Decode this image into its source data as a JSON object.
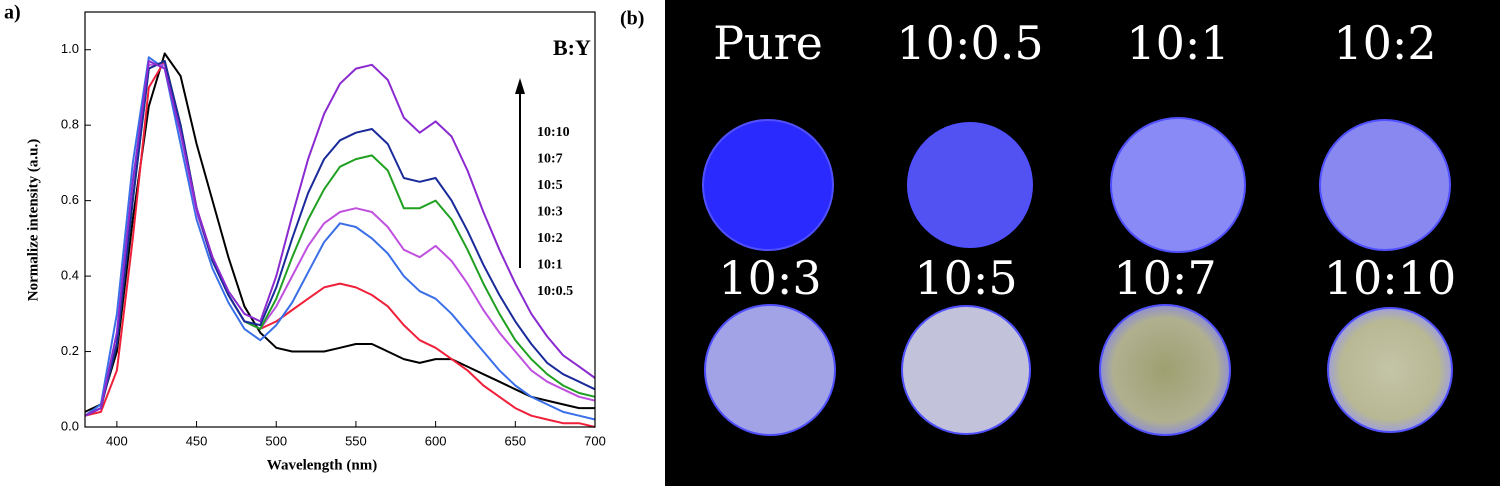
{
  "chart_data": {
    "type": "line",
    "panel_label": "a)",
    "x_label": "Wavelength (nm)",
    "y_label": "Normalize intensity (a.u.)",
    "legend_title": "B:Y",
    "xlim": [
      380,
      700
    ],
    "xticks": [
      400,
      450,
      500,
      550,
      600,
      650,
      700
    ],
    "ylim": [
      0,
      1.1
    ],
    "yticks": [
      {
        "value": 0,
        "label": "0.0"
      },
      0.2,
      0.4,
      0.6,
      0.8,
      {
        "value": 1,
        "label": "1.0"
      }
    ],
    "grid": false,
    "x": [
      380,
      390,
      400,
      410,
      420,
      430,
      440,
      450,
      460,
      470,
      480,
      490,
      500,
      510,
      520,
      530,
      540,
      550,
      560,
      570,
      580,
      590,
      600,
      610,
      620,
      630,
      640,
      650,
      660,
      670,
      680,
      690,
      700
    ],
    "series": [
      {
        "name": "10:0.5",
        "color": "#000000",
        "values": [
          0.04,
          0.06,
          0.2,
          0.55,
          0.85,
          0.99,
          0.93,
          0.75,
          0.6,
          0.45,
          0.32,
          0.25,
          0.21,
          0.2,
          0.2,
          0.2,
          0.21,
          0.22,
          0.22,
          0.2,
          0.18,
          0.17,
          0.18,
          0.18,
          0.16,
          0.14,
          0.12,
          0.1,
          0.08,
          0.07,
          0.06,
          0.05,
          0.05
        ]
      },
      {
        "name": "10:1",
        "color": "#f0203a",
        "values": [
          0.03,
          0.04,
          0.15,
          0.5,
          0.9,
          0.97,
          0.8,
          0.58,
          0.45,
          0.35,
          0.28,
          0.26,
          0.28,
          0.31,
          0.34,
          0.37,
          0.38,
          0.37,
          0.35,
          0.32,
          0.27,
          0.23,
          0.21,
          0.18,
          0.15,
          0.11,
          0.08,
          0.05,
          0.03,
          0.02,
          0.01,
          0.01,
          0
        ]
      },
      {
        "name": "10:2",
        "color": "#3a6fe8",
        "values": [
          0.03,
          0.06,
          0.3,
          0.7,
          0.98,
          0.95,
          0.75,
          0.55,
          0.42,
          0.33,
          0.26,
          0.23,
          0.27,
          0.33,
          0.41,
          0.49,
          0.54,
          0.53,
          0.5,
          0.46,
          0.4,
          0.36,
          0.34,
          0.3,
          0.25,
          0.2,
          0.15,
          0.11,
          0.08,
          0.06,
          0.04,
          0.03,
          0.02
        ]
      },
      {
        "name": "10:3",
        "color": "#c050e0",
        "values": [
          0.03,
          0.05,
          0.25,
          0.65,
          0.96,
          0.96,
          0.78,
          0.57,
          0.44,
          0.35,
          0.28,
          0.26,
          0.32,
          0.4,
          0.48,
          0.54,
          0.57,
          0.58,
          0.57,
          0.53,
          0.47,
          0.45,
          0.48,
          0.44,
          0.38,
          0.31,
          0.25,
          0.2,
          0.15,
          0.12,
          0.1,
          0.08,
          0.07
        ]
      },
      {
        "name": "10:5",
        "color": "#20a020",
        "values": [
          0.03,
          0.05,
          0.22,
          0.6,
          0.95,
          0.97,
          0.8,
          0.58,
          0.44,
          0.35,
          0.28,
          0.26,
          0.34,
          0.45,
          0.55,
          0.63,
          0.69,
          0.71,
          0.72,
          0.68,
          0.58,
          0.58,
          0.6,
          0.55,
          0.47,
          0.38,
          0.3,
          0.23,
          0.18,
          0.14,
          0.11,
          0.09,
          0.08
        ]
      },
      {
        "name": "10:7",
        "color": "#1a2a9a",
        "values": [
          0.03,
          0.05,
          0.22,
          0.6,
          0.95,
          0.97,
          0.8,
          0.58,
          0.44,
          0.35,
          0.28,
          0.27,
          0.37,
          0.5,
          0.62,
          0.71,
          0.76,
          0.78,
          0.79,
          0.75,
          0.66,
          0.65,
          0.66,
          0.6,
          0.52,
          0.43,
          0.35,
          0.28,
          0.22,
          0.17,
          0.14,
          0.12,
          0.1
        ]
      },
      {
        "name": "10:10",
        "color": "#8a2ad0",
        "values": [
          0.03,
          0.05,
          0.25,
          0.65,
          0.97,
          0.95,
          0.78,
          0.58,
          0.45,
          0.36,
          0.3,
          0.28,
          0.4,
          0.56,
          0.71,
          0.83,
          0.91,
          0.95,
          0.96,
          0.92,
          0.82,
          0.78,
          0.81,
          0.77,
          0.68,
          0.57,
          0.47,
          0.38,
          0.3,
          0.24,
          0.19,
          0.16,
          0.13
        ]
      }
    ]
  },
  "photo": {
    "panel_label": "(b)",
    "samples": [
      "Pure",
      "10:0.5",
      "10:1",
      "10:2",
      "10:3",
      "10:5",
      "10:7",
      "10:10"
    ]
  }
}
